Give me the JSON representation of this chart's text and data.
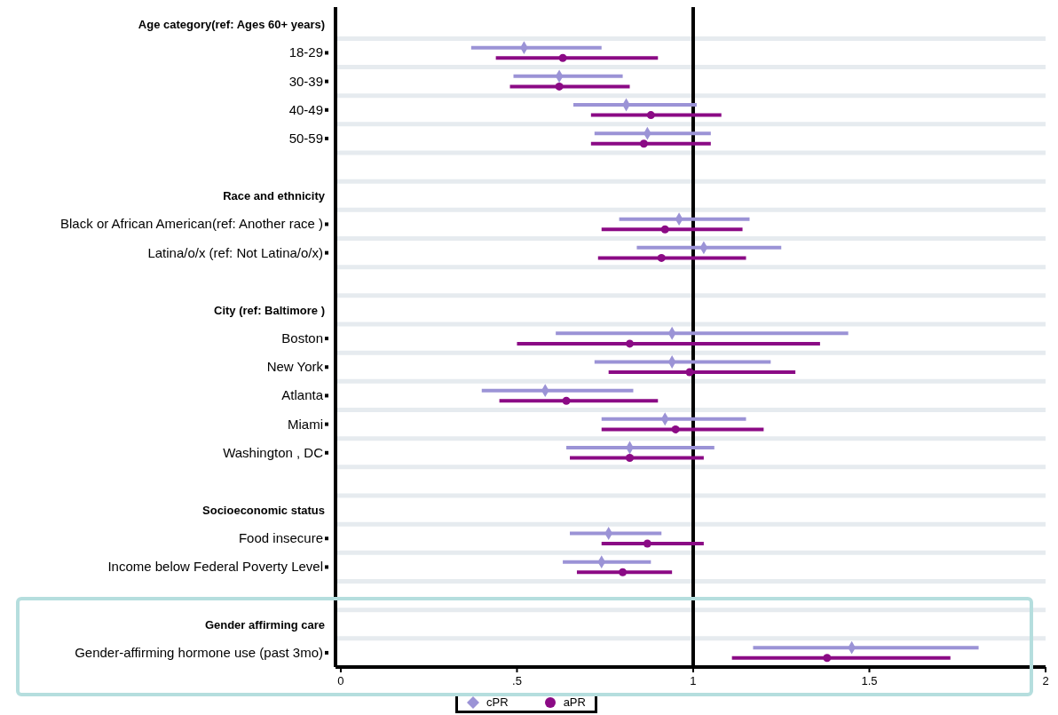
{
  "chart_data": {
    "type": "scatter",
    "orientation": "horizontal",
    "categories": [
      "Age category(ref: Ages 60+ years)",
      "18-29",
      "30-39",
      "40-49",
      "50-59",
      null,
      "Race and ethnicity",
      "Black or African American(ref: Another race )",
      "Latina/o/x (ref: Not Latina/o/x)",
      null,
      "City (ref: Baltimore )",
      "Boston",
      "New York",
      "Atlanta",
      "Miami",
      "Washington , DC",
      null,
      "Socioeconomic status",
      "Food insecure",
      "Income below Federal Poverty Level ",
      null,
      "Gender affirming care",
      "Gender-affirming hormone use  (past 3mo)"
    ],
    "series": [
      {
        "name": "cPR",
        "color": "#9b93d6",
        "marker": "diamond",
        "values": [
          null,
          0.52,
          0.62,
          0.81,
          0.87,
          null,
          null,
          0.96,
          1.03,
          null,
          null,
          0.94,
          0.94,
          0.58,
          0.92,
          0.82,
          null,
          null,
          0.76,
          0.74,
          null,
          null,
          1.45
        ],
        "errors": [
          null,
          [
            0.37,
            0.74
          ],
          [
            0.49,
            0.8
          ],
          [
            0.66,
            1.01
          ],
          [
            0.72,
            1.05
          ],
          null,
          null,
          [
            0.79,
            1.16
          ],
          [
            0.84,
            1.25
          ],
          null,
          null,
          [
            0.61,
            1.44
          ],
          [
            0.72,
            1.22
          ],
          [
            0.4,
            0.83
          ],
          [
            0.74,
            1.15
          ],
          [
            0.64,
            1.06
          ],
          null,
          null,
          [
            0.65,
            0.91
          ],
          [
            0.63,
            0.88
          ],
          null,
          null,
          [
            1.17,
            1.81
          ]
        ]
      },
      {
        "name": "aPR",
        "color": "#8b0a85",
        "marker": "circle",
        "values": [
          null,
          0.63,
          0.62,
          0.88,
          0.86,
          null,
          null,
          0.92,
          0.91,
          null,
          null,
          0.82,
          0.99,
          0.64,
          0.95,
          0.82,
          null,
          null,
          0.87,
          0.8,
          null,
          null,
          1.38
        ],
        "errors": [
          null,
          [
            0.44,
            0.9
          ],
          [
            0.48,
            0.82
          ],
          [
            0.71,
            1.08
          ],
          [
            0.71,
            1.05
          ],
          null,
          null,
          [
            0.74,
            1.14
          ],
          [
            0.73,
            1.15
          ],
          null,
          null,
          [
            0.5,
            1.36
          ],
          [
            0.76,
            1.29
          ],
          [
            0.45,
            0.9
          ],
          [
            0.74,
            1.2
          ],
          [
            0.65,
            1.03
          ],
          null,
          null,
          [
            0.74,
            1.03
          ],
          [
            0.67,
            0.94
          ],
          null,
          null,
          [
            1.11,
            1.73
          ]
        ]
      }
    ],
    "xlim": [
      -0.015,
      2
    ],
    "xticks": [
      0,
      {
        "value": 0.5,
        "label": ".5"
      },
      1,
      1.5,
      2
    ],
    "ref_lines": [
      {
        "axis": "x",
        "value": 1,
        "color": "#000000"
      }
    ],
    "grid": "y",
    "legend": "bottom"
  }
}
